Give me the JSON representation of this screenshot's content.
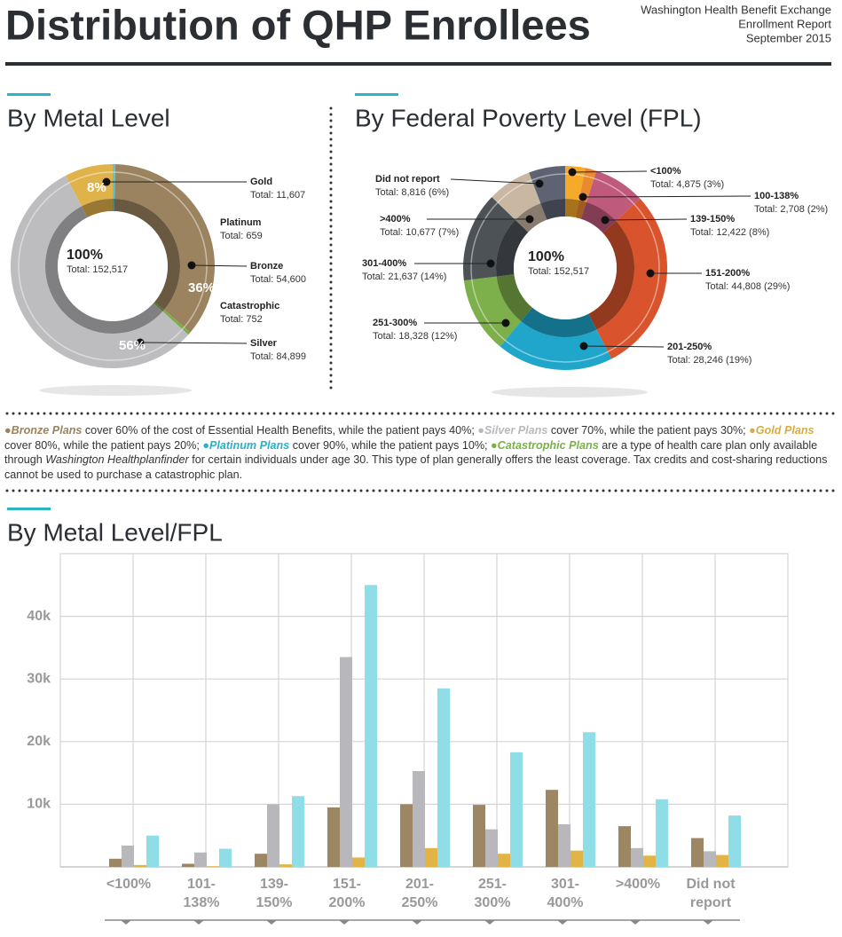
{
  "header": {
    "title": "Distribution of QHP Enrollees",
    "source": [
      "Washington Health Benefit Exchange",
      "Enrollment Report",
      "September 2015"
    ]
  },
  "chart_data": [
    {
      "type": "pie",
      "title": "By Metal Level",
      "center_label": "100%",
      "center_total": "Total: 152,517",
      "categories": [
        "Gold",
        "Platinum",
        "Bronze",
        "Catastrophic",
        "Silver"
      ],
      "values": [
        11607,
        659,
        54600,
        752,
        84899
      ],
      "value_labels": [
        "Total: 11,607",
        "Total: 659",
        "Total: 54,600",
        "Total: 752",
        "Total: 84,899"
      ],
      "percent_labels": [
        "8%",
        null,
        "36%",
        null,
        "56%"
      ],
      "colors": [
        "#e0b24a",
        "#5bc4d4",
        "#9c8360",
        "#7ab04a",
        "#bdbdc0"
      ]
    },
    {
      "type": "pie",
      "title": "By Federal Poverty Level (FPL)",
      "center_label": "100%",
      "center_total": "Total: 152,517",
      "categories": [
        "<100%",
        "100-138%",
        "139-150%",
        "151-200%",
        "201-250%",
        "251-300%",
        "301-400%",
        ">400%",
        "Did not report"
      ],
      "values": [
        4875,
        2708,
        12422,
        44808,
        28246,
        18328,
        21637,
        10677,
        8816
      ],
      "value_labels": [
        "Total: 4,875 (3%)",
        "Total: 2,708 (2%)",
        "Total: 12,422 (8%)",
        "Total: 44,808 (29%)",
        "Total: 28,246 (19%)",
        "Total: 18,328 (12%)",
        "Total: 21,637 (14%)",
        "Total: 10,677 (7%)",
        "Total: 8,816 (6%)"
      ],
      "colors": [
        "#f5aa2a",
        "#ea8a2e",
        "#c05a7c",
        "#d9542c",
        "#20a6cb",
        "#7daf4b",
        "#4d5257",
        "#c9b7a2",
        "#5d6373"
      ]
    },
    {
      "type": "bar",
      "title": "By Metal Level/FPL",
      "categories": [
        "<100%",
        "101-138%",
        "139-150%",
        "151-200%",
        "201-250%",
        "251-300%",
        "301-400%",
        ">400%",
        "Did not report"
      ],
      "series": [
        {
          "color": "#9c8663",
          "values": [
            1300,
            500,
            2100,
            9500,
            10000,
            9900,
            12300,
            6500,
            4600
          ]
        },
        {
          "color": "#b8b8bc",
          "values": [
            3400,
            2300,
            10000,
            33500,
            15300,
            6000,
            6800,
            3000,
            2500
          ]
        },
        {
          "color": "#e2b345",
          "values": [
            300,
            100,
            400,
            1500,
            3000,
            2100,
            2600,
            1800,
            1900
          ]
        },
        {
          "color": "#8fdde6",
          "values": [
            5000,
            2900,
            11300,
            45000,
            28500,
            18300,
            21500,
            10800,
            8200
          ]
        }
      ],
      "ylim": [
        0,
        50000
      ],
      "yticks": [
        {
          "value": 10000,
          "label": "10k"
        },
        {
          "value": 20000,
          "label": "20k"
        },
        {
          "value": 30000,
          "label": "30k"
        },
        {
          "value": 40000,
          "label": "40k"
        }
      ],
      "grid": true
    }
  ],
  "notes": [
    {
      "text": "Bronze Plans",
      "color": "#9c8360"
    },
    {
      "text": " cover 60% of the cost of Essential Health Benefits, while the patient pays 40%; "
    },
    {
      "text": "Silver Plans",
      "color": "#b9b9bd"
    },
    {
      "text": " cover 70%, while the patient pays 30%; "
    },
    {
      "text": "Gold Plans",
      "color": "#d9ac42"
    },
    {
      "text": " cover 80%, while the patient pays 20%; "
    },
    {
      "text": "Platinum Plans",
      "color": "#2aafc7"
    },
    {
      "text": " cover 90%, while the patient pays 10%; "
    },
    {
      "text": "Catastrophic Plans",
      "color": "#7ab04a"
    },
    {
      "text": " are a type of health care plan only available through "
    },
    {
      "text": "Washington Healthplanfinder",
      "italic": true
    },
    {
      "text": " for certain individuals under age 30. This type of plan generally offers the least coverage. Tax credits and cost-sharing reductions cannot be used to purchase a catastrophic plan."
    }
  ]
}
